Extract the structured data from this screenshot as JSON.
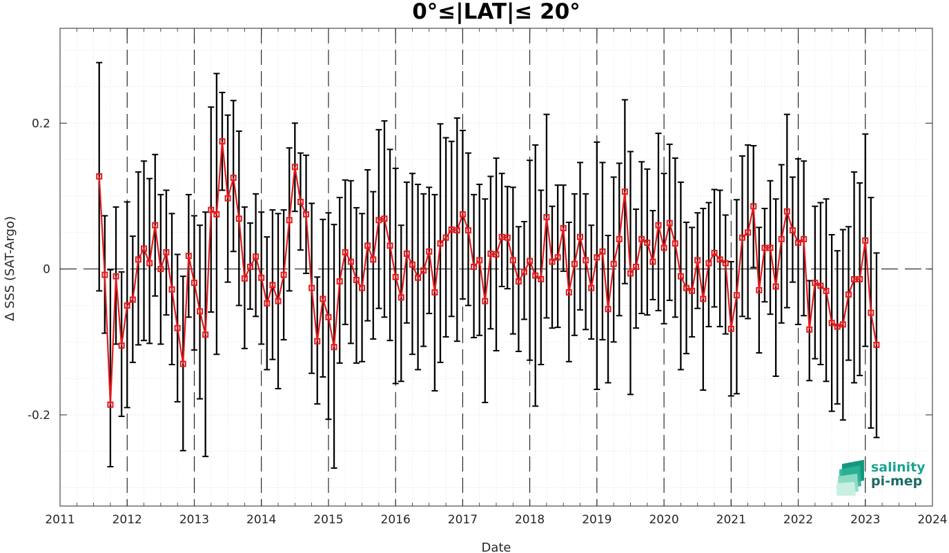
{
  "chart_data": {
    "type": "line",
    "title": "0°≤|LAT|≤ 20°",
    "xlabel": "Date",
    "ylabel": "Δ SSS (SAT-Argo)",
    "xlim": [
      2011,
      2024
    ],
    "ylim": [
      -0.325,
      0.33
    ],
    "x_ticks": [
      "2011",
      "2012",
      "2013",
      "2014",
      "2015",
      "2016",
      "2017",
      "2018",
      "2019",
      "2020",
      "2021",
      "2022",
      "2023",
      "2024"
    ],
    "y_ticks": [
      {
        "value": 0.2,
        "label": "0.2"
      },
      {
        "value": 0,
        "label": "0"
      },
      {
        "value": -0.2,
        "label": "-0.2"
      }
    ],
    "grid": true,
    "series": [
      {
        "color": "#e41a1c",
        "errorbar_color": "#000000",
        "start": "2011-08",
        "means": [
          0.127,
          -0.008,
          -0.186,
          -0.01,
          -0.105,
          -0.05,
          -0.042,
          0.013,
          0.028,
          0.008,
          0.06,
          0.0,
          0.023,
          -0.028,
          -0.081,
          -0.13,
          0.018,
          -0.019,
          -0.058,
          -0.09,
          0.081,
          0.075,
          0.175,
          0.097,
          0.125,
          0.069,
          -0.013,
          0.003,
          0.017,
          -0.012,
          -0.047,
          -0.022,
          -0.044,
          -0.008,
          0.067,
          0.14,
          0.092,
          0.075,
          -0.026,
          -0.099,
          -0.041,
          -0.066,
          -0.107,
          -0.017,
          0.023,
          0.01,
          -0.015,
          -0.026,
          0.032,
          0.013,
          0.067,
          0.069,
          0.032,
          -0.011,
          -0.039,
          0.021,
          0.006,
          -0.012,
          -0.002,
          0.024,
          -0.032,
          0.035,
          0.043,
          0.054,
          0.053,
          0.075,
          0.053,
          0.003,
          0.012,
          -0.044,
          0.021,
          0.02,
          0.044,
          0.043,
          0.012,
          -0.017,
          -0.004,
          0.011,
          -0.009,
          -0.014,
          0.071,
          0.01,
          0.016,
          0.056,
          -0.032,
          0.007,
          0.044,
          0.012,
          -0.026,
          0.016,
          0.024,
          -0.055,
          0.007,
          0.041,
          0.106,
          -0.006,
          0.003,
          0.041,
          0.036,
          0.01,
          0.06,
          0.029,
          0.063,
          0.035,
          -0.01,
          -0.026,
          -0.03,
          0.012,
          -0.041,
          0.008,
          0.022,
          0.013,
          0.008,
          -0.082,
          -0.036,
          0.043,
          0.05,
          0.086,
          -0.029,
          0.029,
          0.029,
          -0.024,
          0.041,
          0.079,
          0.053,
          0.036,
          0.041,
          -0.083,
          -0.019,
          -0.023,
          -0.03,
          -0.074,
          -0.079,
          -0.076,
          -0.035,
          -0.014,
          -0.014,
          0.039,
          -0.06,
          -0.104
        ],
        "err_upper": [
          0.283,
          0.073,
          -0.001,
          0.085,
          -0.004,
          0.092,
          0.045,
          0.133,
          0.148,
          0.124,
          0.157,
          0.102,
          0.108,
          0.076,
          0.02,
          -0.01,
          0.102,
          0.073,
          0.06,
          0.078,
          0.222,
          0.268,
          0.242,
          0.211,
          0.231,
          0.189,
          0.085,
          0.063,
          0.103,
          0.078,
          0.044,
          0.081,
          0.076,
          0.081,
          0.166,
          0.2,
          0.159,
          0.156,
          0.09,
          -0.011,
          0.068,
          0.077,
          0.061,
          0.098,
          0.122,
          0.121,
          0.084,
          0.076,
          0.136,
          0.106,
          0.191,
          0.203,
          0.164,
          0.138,
          0.06,
          0.119,
          0.131,
          0.116,
          0.103,
          0.112,
          0.102,
          0.199,
          0.18,
          0.175,
          0.207,
          0.19,
          0.159,
          0.102,
          0.116,
          0.096,
          0.127,
          0.152,
          0.131,
          0.113,
          0.112,
          0.058,
          0.065,
          0.149,
          0.17,
          0.108,
          0.212,
          0.086,
          0.115,
          0.115,
          0.064,
          0.103,
          0.146,
          0.103,
          0.06,
          0.174,
          0.146,
          0.046,
          0.126,
          0.145,
          0.232,
          0.161,
          0.082,
          0.147,
          0.137,
          0.08,
          0.186,
          0.131,
          0.171,
          0.152,
          0.119,
          0.064,
          0.057,
          0.077,
          0.083,
          0.091,
          0.109,
          0.108,
          0.074,
          0.01,
          0.095,
          0.155,
          0.17,
          0.169,
          0.057,
          0.083,
          0.121,
          0.096,
          0.143,
          0.212,
          0.126,
          0.151,
          0.148,
          -0.016,
          0.086,
          0.091,
          0.096,
          0.047,
          0.025,
          0.054,
          0.058,
          0.133,
          0.118,
          0.185,
          0.098,
          0.022
        ],
        "err_lower": [
          -0.03,
          -0.088,
          -0.271,
          -0.103,
          -0.202,
          -0.19,
          -0.128,
          -0.104,
          -0.098,
          -0.102,
          -0.037,
          -0.103,
          -0.063,
          -0.131,
          -0.182,
          -0.249,
          -0.066,
          -0.111,
          -0.178,
          -0.257,
          -0.059,
          -0.117,
          0.108,
          -0.018,
          0.024,
          -0.05,
          -0.109,
          -0.055,
          -0.065,
          -0.103,
          -0.138,
          -0.124,
          -0.164,
          -0.097,
          -0.03,
          0.079,
          0.026,
          -0.006,
          -0.143,
          -0.185,
          -0.148,
          -0.206,
          -0.273,
          -0.129,
          -0.076,
          -0.102,
          -0.129,
          -0.127,
          -0.071,
          -0.096,
          -0.054,
          -0.066,
          -0.098,
          -0.157,
          -0.154,
          -0.074,
          -0.117,
          -0.138,
          -0.106,
          -0.061,
          -0.167,
          -0.128,
          -0.093,
          -0.065,
          -0.099,
          -0.041,
          -0.05,
          -0.094,
          -0.091,
          -0.183,
          -0.082,
          -0.112,
          -0.024,
          -0.027,
          -0.089,
          -0.113,
          -0.069,
          -0.125,
          -0.188,
          -0.131,
          -0.067,
          -0.081,
          -0.08,
          -0.003,
          -0.127,
          -0.091,
          -0.056,
          -0.083,
          -0.096,
          -0.165,
          -0.097,
          -0.156,
          -0.1,
          -0.064,
          -0.02,
          -0.172,
          -0.081,
          -0.061,
          -0.063,
          -0.042,
          -0.057,
          -0.075,
          -0.043,
          -0.066,
          -0.138,
          -0.116,
          -0.093,
          -0.054,
          -0.166,
          -0.079,
          -0.052,
          -0.079,
          -0.089,
          -0.174,
          -0.171,
          -0.065,
          -0.068,
          0.002,
          -0.115,
          -0.045,
          -0.062,
          -0.147,
          -0.074,
          -0.053,
          -0.018,
          -0.076,
          -0.064,
          -0.153,
          -0.123,
          -0.131,
          -0.154,
          -0.195,
          -0.185,
          -0.207,
          -0.125,
          -0.156,
          -0.146,
          -0.106,
          -0.218,
          -0.231
        ]
      }
    ]
  },
  "logo": {
    "line1": "salinity",
    "line2": "pi-mep",
    "color1": "#1aa391",
    "color2": "#1a6b63"
  }
}
